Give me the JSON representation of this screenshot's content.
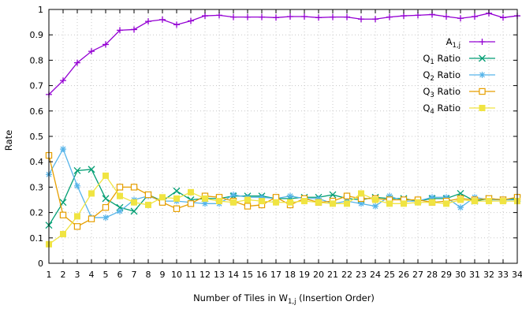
{
  "chart_data": {
    "type": "line",
    "xlabel_main": "Number of Tiles in W",
    "xlabel_sub": "1,j",
    "xlabel_tail": " (Insertion Order)",
    "ylabel": "Rate",
    "xlim": [
      1,
      34
    ],
    "ylim": [
      0,
      1
    ],
    "x": [
      1,
      2,
      3,
      4,
      5,
      6,
      7,
      8,
      9,
      10,
      11,
      12,
      13,
      14,
      15,
      16,
      17,
      18,
      19,
      20,
      21,
      22,
      23,
      24,
      25,
      26,
      27,
      28,
      29,
      30,
      31,
      32,
      33,
      34
    ],
    "x_ticks": [
      "1",
      "2",
      "3",
      "4",
      "5",
      "6",
      "7",
      "8",
      "9",
      "10",
      "11",
      "12",
      "13",
      "14",
      "15",
      "16",
      "17",
      "18",
      "19",
      "20",
      "21",
      "22",
      "23",
      "24",
      "25",
      "26",
      "27",
      "28",
      "29",
      "30",
      "31",
      "32",
      "33",
      "34"
    ],
    "y_ticks": [
      "0",
      "0.1",
      "0.2",
      "0.3",
      "0.4",
      "0.5",
      "0.6",
      "0.7",
      "0.8",
      "0.9",
      "1"
    ],
    "grid": true,
    "legend_position": "top-right",
    "series": [
      {
        "name_main": "A",
        "name_sub": "1,j",
        "name_tail": "",
        "color": "#9400d3",
        "marker": "plus",
        "values": [
          0.665,
          0.72,
          0.79,
          0.835,
          0.862,
          0.918,
          0.921,
          0.953,
          0.96,
          0.94,
          0.955,
          0.975,
          0.977,
          0.97,
          0.97,
          0.97,
          0.968,
          0.972,
          0.972,
          0.968,
          0.97,
          0.97,
          0.962,
          0.962,
          0.97,
          0.975,
          0.977,
          0.98,
          0.972,
          0.965,
          0.972,
          0.985,
          0.968,
          0.975
        ]
      },
      {
        "name_main": "Q",
        "name_sub": "1",
        "name_tail": " Ratio",
        "color": "#009e73",
        "marker": "cross",
        "values": [
          0.15,
          0.24,
          0.365,
          0.37,
          0.255,
          0.22,
          0.205,
          0.27,
          0.245,
          0.285,
          0.25,
          0.255,
          0.255,
          0.265,
          0.265,
          0.265,
          0.255,
          0.255,
          0.26,
          0.26,
          0.27,
          0.255,
          0.25,
          0.26,
          0.255,
          0.255,
          0.245,
          0.255,
          0.255,
          0.275,
          0.245,
          0.255,
          0.25,
          0.255
        ]
      },
      {
        "name_main": "Q",
        "name_sub": "2",
        "name_tail": " Ratio",
        "color": "#56b4e9",
        "marker": "star",
        "values": [
          0.35,
          0.45,
          0.305,
          0.18,
          0.18,
          0.205,
          0.25,
          0.265,
          0.245,
          0.245,
          0.24,
          0.235,
          0.235,
          0.27,
          0.26,
          0.26,
          0.255,
          0.265,
          0.255,
          0.255,
          0.235,
          0.245,
          0.235,
          0.225,
          0.265,
          0.245,
          0.245,
          0.26,
          0.26,
          0.22,
          0.26,
          0.25,
          0.25,
          0.25
        ]
      },
      {
        "name_main": "Q",
        "name_sub": "3",
        "name_tail": " Ratio",
        "color": "#e69f00",
        "marker": "box",
        "values": [
          0.425,
          0.19,
          0.145,
          0.175,
          0.22,
          0.3,
          0.3,
          0.27,
          0.24,
          0.215,
          0.235,
          0.265,
          0.26,
          0.245,
          0.225,
          0.23,
          0.26,
          0.23,
          0.255,
          0.24,
          0.245,
          0.265,
          0.255,
          0.255,
          0.25,
          0.25,
          0.25,
          0.24,
          0.245,
          0.255,
          0.25,
          0.255,
          0.25,
          0.26
        ]
      },
      {
        "name_main": "Q",
        "name_sub": "4",
        "name_tail": " Ratio",
        "color": "#f0e442",
        "marker": "filled-square",
        "values": [
          0.075,
          0.115,
          0.185,
          0.275,
          0.345,
          0.265,
          0.24,
          0.23,
          0.26,
          0.255,
          0.28,
          0.255,
          0.245,
          0.24,
          0.25,
          0.245,
          0.24,
          0.24,
          0.245,
          0.24,
          0.235,
          0.235,
          0.275,
          0.25,
          0.235,
          0.235,
          0.24,
          0.24,
          0.235,
          0.25,
          0.245,
          0.245,
          0.245,
          0.245
        ]
      }
    ]
  }
}
